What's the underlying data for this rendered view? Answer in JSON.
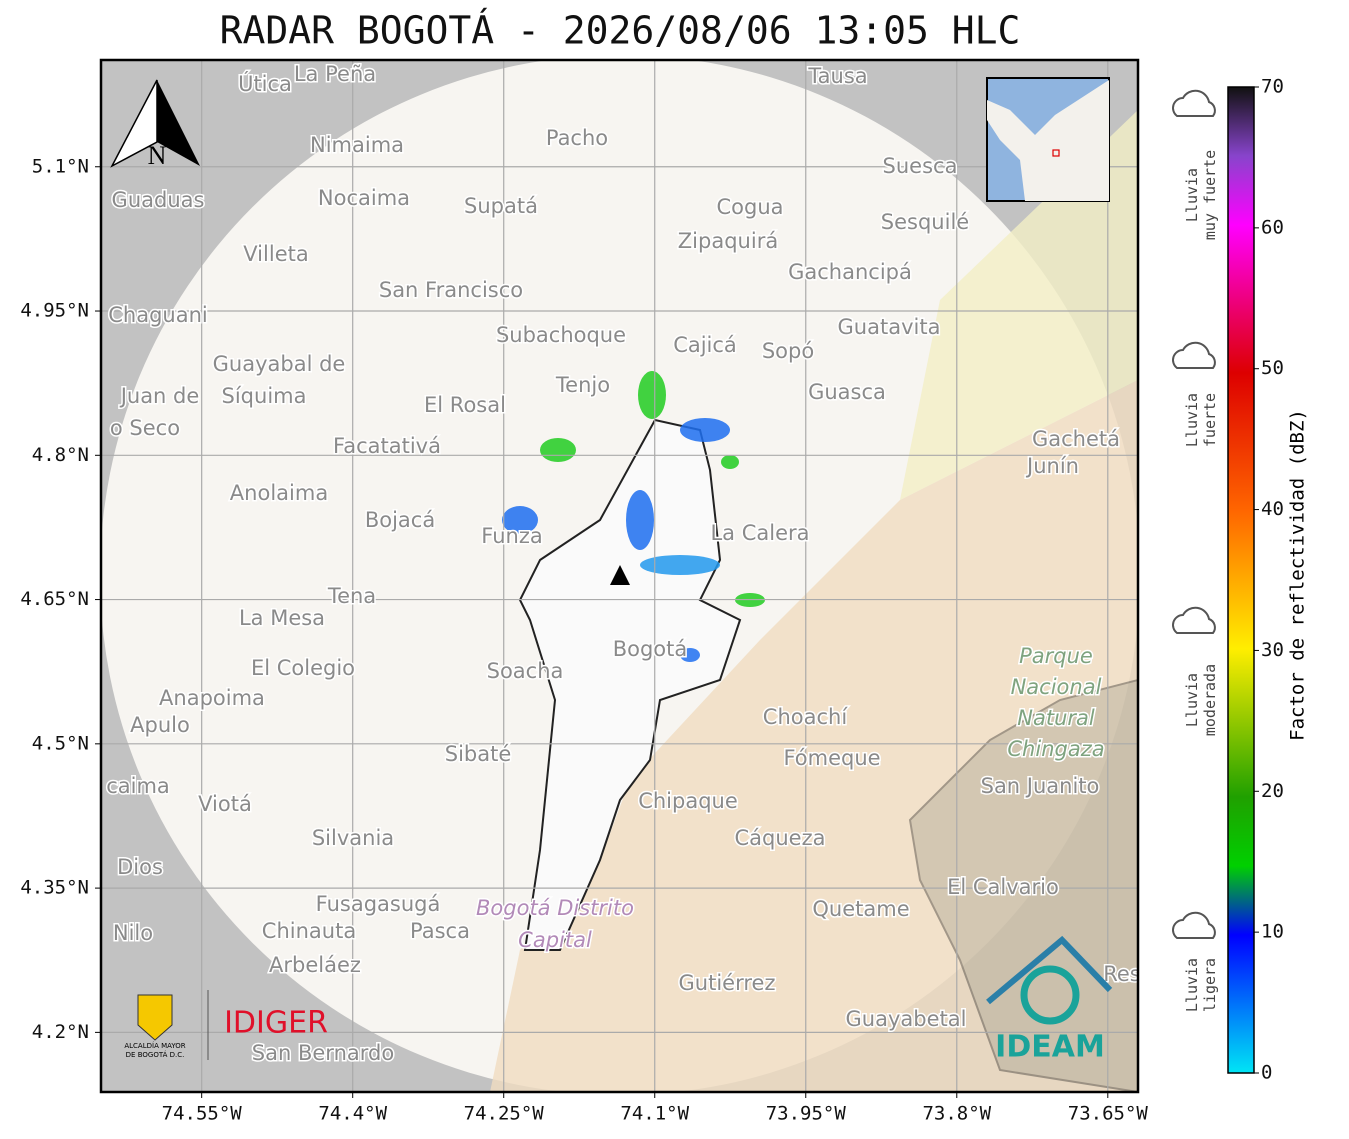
{
  "title": "RADAR BOGOTÁ - 2026/08/06 13:05 HLC",
  "lon_range": [
    -74.65,
    -73.62
  ],
  "lat_range": [
    4.138,
    5.211
  ],
  "lon_ticks": [
    {
      "value": -74.55,
      "label": "74.55°W"
    },
    {
      "value": -74.4,
      "label": "74.4°W"
    },
    {
      "value": -74.25,
      "label": "74.25°W"
    },
    {
      "value": -74.1,
      "label": "74.1°W"
    },
    {
      "value": -73.95,
      "label": "73.95°W"
    },
    {
      "value": -73.8,
      "label": "73.8°W"
    },
    {
      "value": -73.65,
      "label": "73.65°W"
    }
  ],
  "lat_ticks": [
    {
      "value": 5.1,
      "label": "5.1°N"
    },
    {
      "value": 4.95,
      "label": "4.95°N"
    },
    {
      "value": 4.8,
      "label": "4.8°N"
    },
    {
      "value": 4.65,
      "label": "4.65°N"
    },
    {
      "value": 4.5,
      "label": "4.5°N"
    },
    {
      "value": 4.35,
      "label": "4.35°N"
    },
    {
      "value": 4.2,
      "label": "4.2°N"
    }
  ],
  "places": [
    "Útica",
    "La Peña",
    "Tausa",
    "Pacho",
    "Nimaima",
    "Guaduas",
    "Nocaima",
    "Supatá",
    "Cogua",
    "Suesca",
    "Sesquilé",
    "Zipaquirá",
    "Villeta",
    "Gachancipá",
    "San Francisco",
    "Chaguani",
    "Guatavita",
    "Subachoque",
    "Cajicá",
    "Sopó",
    "Guayabal de",
    "Síquima",
    "Juan de",
    "o Seco",
    "Tenjo",
    "Guasca",
    "El Rosal",
    "Facatativá",
    "Gachetá",
    "Junín",
    "Anolaima",
    "Bojacá",
    "Funza",
    "La Calera",
    "Tena",
    "La Mesa",
    "Bogotá",
    "El Colegio",
    "Soacha",
    "Anapoima",
    "Apulo",
    "Choachí",
    "Sibaté",
    "Fómeque",
    "San Juanito",
    "caima",
    "Viotá",
    "Chipaque",
    "Cáqueza",
    "Silvania",
    "Dios",
    "El Calvario",
    "Fusagasugá",
    "Quetame",
    "Nilo",
    "Chinauta",
    "Pasca",
    "Arbeláez",
    "Gutiérrez",
    "Guayabetal",
    "San Bernardo",
    "Res"
  ],
  "park": [
    "Parque",
    "Nacional",
    "Natural",
    "Chingaza"
  ],
  "district": [
    "Bogotá Distrito",
    "Capital"
  ],
  "north": "N",
  "logos": {
    "alcaldia": [
      "ALCALDÍA MAYOR",
      "DE BOGOTÁ D.C."
    ],
    "idiger": "IDIGER",
    "ideam": "IDEAM"
  },
  "colorbar": {
    "label": "Factor de reflectividad (dBZ)",
    "lim": [
      0,
      70
    ],
    "ticks": [
      0,
      10,
      20,
      30,
      40,
      50,
      60,
      70
    ]
  },
  "rain_levels": [
    [
      "Lluvia",
      "muy fuerte"
    ],
    [
      "Lluvia",
      "fuerte"
    ],
    [
      "Lluvia",
      "moderada"
    ],
    [
      "Lluvia",
      "ligera"
    ]
  ]
}
